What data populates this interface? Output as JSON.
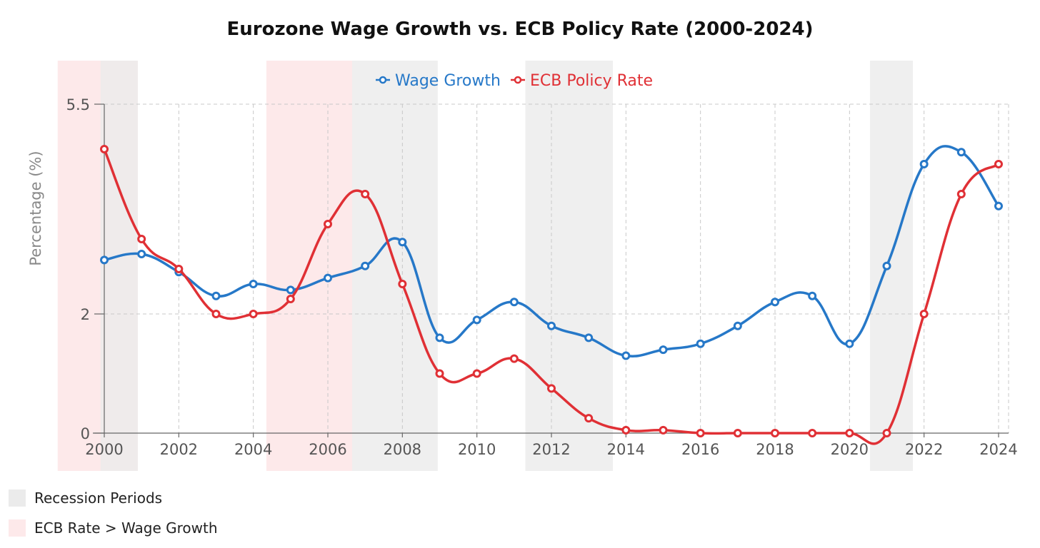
{
  "title": "Eurozone Wage Growth vs. ECB Policy Rate (2000-2024)",
  "colors": {
    "wage": "#2678c8",
    "ecb": "#e03035",
    "recession": "#ebebeb",
    "ecb_above": "#fde9ea"
  },
  "chart_data": {
    "type": "line",
    "title": "Eurozone Wage Growth vs. ECB Policy Rate (2000-2024)",
    "xlabel": "",
    "ylabel": "Percentage (%)",
    "x": [
      2000,
      2001,
      2002,
      2003,
      2004,
      2005,
      2006,
      2007,
      2008,
      2009,
      2010,
      2011,
      2012,
      2013,
      2014,
      2015,
      2016,
      2017,
      2018,
      2019,
      2020,
      2021,
      2022,
      2023,
      2024
    ],
    "x_ticks": [
      "2000",
      "2002",
      "2004",
      "2006",
      "2008",
      "2010",
      "2012",
      "2014",
      "2016",
      "2018",
      "2020",
      "2022",
      "2024"
    ],
    "y_ticks": [
      "0",
      "2",
      "5.5"
    ],
    "xlim": [
      2000,
      2024
    ],
    "ylim": [
      0,
      5.5
    ],
    "grid": true,
    "legend_position": "top-center",
    "series": [
      {
        "name": "Wage Growth",
        "values": [
          2.9,
          3.0,
          2.7,
          2.3,
          2.5,
          2.4,
          2.6,
          2.8,
          3.2,
          1.6,
          1.9,
          2.2,
          1.8,
          1.6,
          1.3,
          1.4,
          1.5,
          1.8,
          2.2,
          2.3,
          1.5,
          2.8,
          4.5,
          4.7,
          3.8
        ]
      },
      {
        "name": "ECB Policy Rate",
        "values": [
          4.75,
          3.25,
          2.75,
          2.0,
          2.0,
          2.25,
          3.5,
          4.0,
          2.5,
          1.0,
          1.0,
          1.25,
          0.75,
          0.25,
          0.05,
          0.05,
          0.0,
          0.0,
          0.0,
          0.0,
          0.0,
          0.0,
          2.0,
          4.0,
          4.5
        ]
      }
    ],
    "shaded_regions": [
      {
        "name": "ECB Rate > Wage Growth",
        "from": 1998.75,
        "to": 2000.9
      },
      {
        "name": "Recession Periods",
        "from": 1999.9,
        "to": 2000.9
      },
      {
        "name": "ECB Rate > Wage Growth",
        "from": 2004.35,
        "to": 2006.65
      },
      {
        "name": "Recession Periods",
        "from": 2006.65,
        "to": 2008.95
      },
      {
        "name": "Recession Periods",
        "from": 2011.3,
        "to": 2013.65
      },
      {
        "name": "Recession Periods",
        "from": 2020.55,
        "to": 2021.7
      }
    ]
  },
  "bottom_legend": [
    {
      "label": "Recession Periods",
      "color": "#ebebeb"
    },
    {
      "label": "ECB Rate > Wage Growth",
      "color": "#fde9ea"
    }
  ]
}
